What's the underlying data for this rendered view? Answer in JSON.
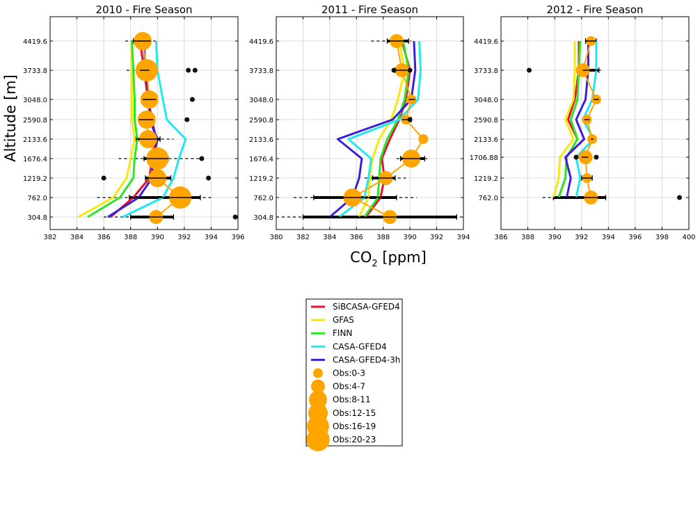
{
  "figure": {
    "ylabel": "Altitude [m]",
    "xlabel_main": "CO",
    "xlabel_sub": "2",
    "xlabel_rest": " [ppm]"
  },
  "colors": {
    "SiBCASA-GFED4": "#e8112d",
    "GFAS": "#f5e90b",
    "FINN": "#2ae62a",
    "CASA-GFED4": "#1ee8f0",
    "CASA-GFED4-3h": "#3a1fd9",
    "obs": "#ffa500",
    "outlier": "#111111",
    "errorbar": "#000000"
  },
  "legend": {
    "lines": [
      "SiBCASA-GFED4",
      "GFAS",
      "FINN",
      "CASA-GFED4",
      "CASA-GFED4-3h"
    ],
    "obs": [
      {
        "label": "Obs:0-3",
        "size": 1
      },
      {
        "label": "Obs:4-7",
        "size": 2
      },
      {
        "label": "Obs:8-11",
        "size": 3
      },
      {
        "label": "Obs:12-15",
        "size": 4
      },
      {
        "label": "Obs:16-19",
        "size": 5
      },
      {
        "label": "Obs:20-23",
        "size": 6
      }
    ]
  },
  "chart_data": [
    {
      "type": "line",
      "title": "2010 - Fire Season",
      "xlim": [
        382,
        396
      ],
      "xticks": [
        "382",
        "384",
        "386",
        "388",
        "390",
        "392",
        "394",
        "396"
      ],
      "yticks": [
        "304.8",
        "762.0",
        "1219.2",
        "1676.4",
        "2133.6",
        "2590.8",
        "3048.0",
        "3733.8",
        "4419.6"
      ],
      "series": [
        {
          "name": "SiBCASA-GFED4",
          "x": [
            386.5,
            388.2,
            389.4,
            389.6,
            389.9,
            389.6,
            389.3,
            389.0,
            388.7
          ]
        },
        {
          "name": "GFAS",
          "x": [
            384.1,
            386.7,
            387.7,
            388.0,
            388.3,
            388.1,
            388.1,
            388.1,
            388.1
          ]
        },
        {
          "name": "FINN",
          "x": [
            384.8,
            387.2,
            388.2,
            388.3,
            388.5,
            388.3,
            388.3,
            388.2,
            388.1
          ]
        },
        {
          "name": "CASA-GFED4",
          "x": [
            387.4,
            390.4,
            391.2,
            391.6,
            392.1,
            390.7,
            390.4,
            390.0,
            389.9
          ]
        },
        {
          "name": "CASA-GFED4-3h",
          "x": [
            386.3,
            388.6,
            389.6,
            389.7,
            390.0,
            389.4,
            389.4,
            389.1,
            389.0
          ]
        }
      ],
      "obs": [
        {
          "level": 0,
          "x": 389.9,
          "size": 2,
          "err": [
            388.0,
            391.2
          ],
          "dash": [
            386.0,
            388.0
          ]
        },
        {
          "level": 1,
          "x": 391.7,
          "size": 4,
          "err": [
            387.9,
            393.2
          ],
          "dash": [
            385.5,
            394.0
          ]
        },
        {
          "level": 2,
          "x": 390.0,
          "size": 3,
          "err": [
            389.1,
            391.0
          ]
        },
        {
          "level": 3,
          "x": 390.0,
          "size": 4,
          "err": [
            389.0,
            390.8
          ],
          "dash": [
            387.1,
            393.3
          ]
        },
        {
          "level": 4,
          "x": 389.3,
          "size": 3,
          "err": [
            388.4,
            390.2
          ],
          "dash": [
            388.2,
            391.2
          ]
        },
        {
          "level": 5,
          "x": 389.2,
          "size": 3,
          "err": [
            388.6,
            389.7
          ]
        },
        {
          "level": 6,
          "x": 389.4,
          "size": 3,
          "err": [
            388.9,
            389.9
          ]
        },
        {
          "level": 7,
          "x": 389.2,
          "size": 4,
          "err": [
            388.7,
            389.4
          ],
          "dash": [
            387.7,
            389.6
          ]
        },
        {
          "level": 8,
          "x": 388.9,
          "size": 3,
          "err": [
            388.2,
            389.5
          ],
          "dash": [
            387.6,
            390.1
          ]
        }
      ],
      "outliers": [
        {
          "level": 0,
          "x": 395.8
        },
        {
          "level": 2,
          "x": 386.0
        },
        {
          "level": 2,
          "x": 393.8
        },
        {
          "level": 3,
          "x": 393.3
        },
        {
          "level": 5,
          "x": 392.2
        },
        {
          "level": 6,
          "x": 392.6
        },
        {
          "level": 7,
          "x": 392.3
        },
        {
          "level": 7,
          "x": 392.8
        }
      ]
    },
    {
      "type": "line",
      "title": "2011 - Fire Season",
      "xlim": [
        380,
        394
      ],
      "xticks": [
        "380",
        "382",
        "384",
        "386",
        "388",
        "390",
        "392",
        "394"
      ],
      "yticks": [
        "304.8",
        "762.0",
        "1219.2",
        "1676.4",
        "2133.6",
        "2590.8",
        "3048.0",
        "3733.8",
        "4419.6"
      ],
      "series": [
        {
          "name": "SiBCASA-GFED4",
          "x": [
            386.7,
            387.8,
            388.1,
            387.9,
            388.5,
            389.2,
            389.7,
            390.0,
            389.4
          ]
        },
        {
          "name": "GFAS",
          "x": [
            386.2,
            386.9,
            387.0,
            387.2,
            387.7,
            388.6,
            389.1,
            389.6,
            389.2
          ]
        },
        {
          "name": "FINN",
          "x": [
            386.6,
            387.6,
            387.7,
            387.8,
            388.3,
            389.1,
            389.6,
            389.9,
            389.5
          ]
        },
        {
          "name": "CASA-GFED4",
          "x": [
            384.7,
            386.6,
            386.9,
            387.1,
            385.4,
            389.2,
            390.6,
            390.8,
            390.7
          ]
        },
        {
          "name": "CASA-GFED4-3h",
          "x": [
            384.0,
            385.7,
            386.2,
            386.4,
            384.6,
            388.7,
            390.1,
            390.4,
            390.3
          ]
        }
      ],
      "obs": [
        {
          "level": 0,
          "x": 388.5,
          "size": 2,
          "err": [
            382.0,
            393.5
          ],
          "dash": [
            380.0,
            393.8
          ]
        },
        {
          "level": 1,
          "x": 385.7,
          "size": 3,
          "err": [
            382.8,
            389.0
          ],
          "dash": [
            381.3,
            390.5
          ]
        },
        {
          "level": 2,
          "x": 388.2,
          "size": 2,
          "err": [
            387.2,
            388.9
          ],
          "dash": [
            386.6,
            389.7
          ]
        },
        {
          "level": 3,
          "x": 390.1,
          "size": 3,
          "err": [
            389.3,
            391.1
          ],
          "dash": [
            389.0,
            391.3
          ]
        },
        {
          "level": 4,
          "x": 391.0,
          "size": 1,
          "err": [
            391.0,
            391.0
          ]
        },
        {
          "level": 5,
          "x": 389.7,
          "size": 1,
          "err": [
            389.4,
            390.1
          ]
        },
        {
          "level": 6,
          "x": 390.1,
          "size": 1,
          "err": [
            389.9,
            390.4
          ]
        },
        {
          "level": 7,
          "x": 389.4,
          "size": 2,
          "err": [
            388.9,
            389.8
          ]
        },
        {
          "level": 8,
          "x": 389.0,
          "size": 2,
          "err": [
            388.3,
            389.9
          ],
          "dash": [
            387.1,
            390.1
          ]
        }
      ],
      "outliers": [
        {
          "level": 7,
          "x": 388.8
        },
        {
          "level": 7,
          "x": 390.0
        },
        {
          "level": 5,
          "x": 390.0
        }
      ]
    },
    {
      "type": "line",
      "title": "2012 - Fire Season",
      "xlim": [
        386,
        400
      ],
      "xticks": [
        "386",
        "388",
        "390",
        "392",
        "394",
        "396",
        "398",
        "400"
      ],
      "yticks": [
        "762.0",
        "1219.2",
        "1706.88",
        "2133.6",
        "2590.8",
        "3048.0",
        "3733.8",
        "4419.6"
      ],
      "series": [
        {
          "name": "SiBCASA-GFED4",
          "x": [
            390.3,
            390.8,
            390.9,
            391.7,
            391.0,
            391.5,
            391.8,
            391.8
          ]
        },
        {
          "name": "GFAS",
          "x": [
            389.9,
            390.3,
            390.4,
            391.4,
            390.8,
            391.4,
            391.5,
            391.5
          ]
        },
        {
          "name": "FINN",
          "x": [
            390.3,
            390.8,
            390.9,
            391.7,
            391.2,
            391.7,
            391.8,
            391.9
          ]
        },
        {
          "name": "CASA-GFED4",
          "x": [
            391.6,
            391.9,
            391.6,
            392.9,
            392.1,
            392.8,
            393.1,
            393.1
          ]
        },
        {
          "name": "CASA-GFED4-3h",
          "x": [
            390.9,
            391.2,
            390.8,
            392.2,
            391.6,
            392.3,
            392.5,
            392.5
          ]
        }
      ],
      "obs": [
        {
          "level": 0,
          "x": 392.7,
          "size": 2,
          "err": [
            389.9,
            393.8
          ],
          "dash": [
            389.1,
            394.0
          ]
        },
        {
          "level": 1,
          "x": 392.4,
          "size": 1,
          "err": [
            392.0,
            392.8
          ]
        },
        {
          "level": 2,
          "x": 392.3,
          "size": 2,
          "err": [
            392.0,
            392.5
          ]
        },
        {
          "level": 3,
          "x": 392.8,
          "size": 1,
          "err": [
            392.7,
            392.9
          ]
        },
        {
          "level": 4,
          "x": 392.4,
          "size": 1,
          "err": [
            392.2,
            392.6
          ]
        },
        {
          "level": 5,
          "x": 393.1,
          "size": 1,
          "err": [
            392.9,
            393.3
          ]
        },
        {
          "level": 6,
          "x": 392.1,
          "size": 2,
          "err": [
            392.1,
            393.3
          ],
          "dash": [
            392.0,
            393.6
          ]
        },
        {
          "level": 7,
          "x": 392.7,
          "size": 1,
          "err": [
            392.3,
            393.1
          ]
        }
      ],
      "outliers": [
        {
          "level": 0,
          "x": 399.3
        },
        {
          "level": 6,
          "x": 388.1
        },
        {
          "level": 2,
          "x": 393.1
        },
        {
          "level": 2,
          "x": 391.6
        }
      ]
    }
  ]
}
